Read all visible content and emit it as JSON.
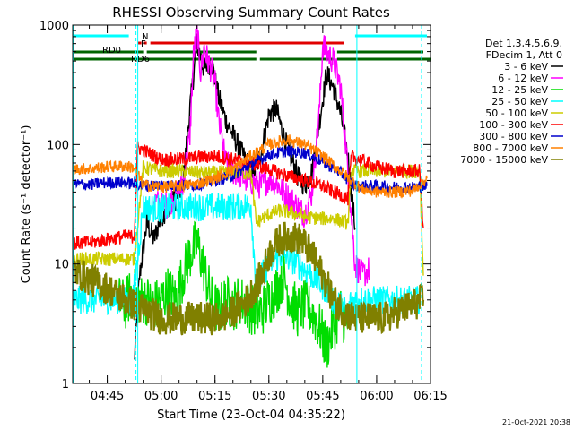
{
  "chart_data": {
    "type": "line",
    "title": "RHESSI Observing Summary Count Rates",
    "xlabel": "Start Time (23-Oct-04 04:35:22)",
    "ylabel": "Count Rate (s⁻¹ detector⁻¹)",
    "footer_date": "21-Oct-2021 20:38",
    "yscale": "log",
    "ylim": [
      1,
      1000
    ],
    "xlim": [
      "04:35:22",
      "06:15:00"
    ],
    "xticks": [
      "04:45",
      "05:00",
      "05:15",
      "05:30",
      "05:45",
      "06:00",
      "06:15"
    ],
    "yticks": [
      "1",
      "10",
      "100",
      "1000"
    ],
    "legend_header": [
      "Det 1,3,4,5,6,9,",
      "FDecim 1, Att 0"
    ],
    "legend_position": "top-right",
    "flags": {
      "n_label": "N",
      "f_label": "F",
      "rd0_label": "RD0",
      "rd6_label": "RD6",
      "n_color": "#00ffff",
      "f_color": "#e00000",
      "rd_color": "#006400",
      "n_segments": [
        [
          "04:35:22",
          "04:51:00"
        ],
        [
          "05:54:00",
          "06:14:00"
        ]
      ],
      "f_segments": [
        [
          "04:53:30",
          "04:54:30"
        ],
        [
          "04:55:00",
          "04:56:00"
        ],
        [
          "04:57:00",
          "05:51:00"
        ]
      ],
      "rd0_segments": [
        [
          "04:35:22",
          "04:55:00"
        ],
        [
          "04:56:00",
          "05:26:30"
        ],
        [
          "05:49:00",
          "06:13:00"
        ]
      ],
      "rd6_segments": [
        [
          "04:35:22",
          "05:26:30"
        ],
        [
          "05:27:30",
          "05:48:00"
        ],
        [
          "05:49:00",
          "06:15:00"
        ]
      ]
    },
    "night_markers": [
      "04:53:00",
      "05:54:30",
      "06:12:30"
    ],
    "series": [
      {
        "name": "3 - 6 keV",
        "color": "#000000",
        "x": [
          "04:52:30",
          "04:54:00",
          "04:56:00",
          "04:58:00",
          "05:00:00",
          "05:02:00",
          "05:04:00",
          "05:06:00",
          "05:08:00",
          "05:10:00",
          "05:12:00",
          "05:14:00",
          "05:16:00",
          "05:18:00",
          "05:20:00",
          "05:22:00",
          "05:24:00",
          "05:26:00",
          "05:28:00",
          "05:30:00",
          "05:32:00",
          "05:34:00",
          "05:36:00",
          "05:38:00",
          "05:40:00",
          "05:42:00",
          "05:44:00",
          "05:46:00",
          "05:48:00",
          "05:50:00",
          "05:52:00",
          "05:54:00"
        ],
        "y": [
          1.5,
          8,
          22,
          16,
          25,
          30,
          35,
          45,
          200,
          700,
          420,
          500,
          250,
          160,
          120,
          90,
          70,
          60,
          90,
          180,
          200,
          120,
          80,
          55,
          45,
          60,
          150,
          390,
          300,
          180,
          80,
          20
        ]
      },
      {
        "name": "6 - 12 keV",
        "color": "#ff00ff",
        "x": [
          "04:58:00",
          "05:00:00",
          "05:02:00",
          "05:04:00",
          "05:06:00",
          "05:08:00",
          "05:09:00",
          "05:10:00",
          "05:11:00",
          "05:12:00",
          "05:13:00",
          "05:14:00",
          "05:15:00",
          "05:16:00",
          "05:18:00",
          "05:20:00",
          "05:22:00",
          "05:24:00",
          "05:26:00",
          "05:28:00",
          "05:30:00",
          "05:32:00",
          "05:34:00",
          "05:36:00",
          "05:38:00",
          "05:40:00",
          "05:42:00",
          "05:44:00",
          "05:45:00",
          "05:46:00",
          "05:48:00",
          "05:50:00",
          "05:52:00",
          "05:54:00",
          "05:56:00",
          "05:58:00"
        ],
        "y": [
          35,
          30,
          32,
          38,
          45,
          120,
          550,
          900,
          400,
          650,
          500,
          420,
          320,
          160,
          70,
          60,
          55,
          50,
          48,
          45,
          52,
          48,
          40,
          35,
          30,
          26,
          40,
          180,
          700,
          600,
          500,
          300,
          60,
          10,
          8,
          9
        ]
      },
      {
        "name": "12 - 25 keV",
        "color": "#00dd00",
        "x": [
          "04:48:00",
          "04:50:00",
          "04:52:00",
          "04:54:00",
          "04:56:00",
          "04:58:00",
          "05:00:00",
          "05:02:00",
          "05:04:00",
          "05:06:00",
          "05:08:00",
          "05:10:00",
          "05:12:00",
          "05:14:00",
          "05:16:00",
          "05:18:00",
          "05:20:00",
          "05:22:00",
          "05:24:00",
          "05:26:00",
          "05:28:00",
          "05:30:00",
          "05:32:00",
          "05:34:00",
          "05:36:00",
          "05:38:00",
          "05:40:00",
          "05:42:00",
          "05:44:00",
          "05:46:00",
          "05:48:00",
          "05:50:00",
          "05:52:00"
        ],
        "y": [
          5,
          4.5,
          6,
          5,
          5,
          4.5,
          5,
          6,
          5,
          8,
          12,
          15,
          9,
          5,
          4,
          5,
          4.5,
          5,
          4.5,
          4,
          4,
          5,
          6,
          8,
          5,
          4,
          4.5,
          4,
          3,
          2,
          3,
          4,
          3
        ]
      },
      {
        "name": "25 - 50 keV",
        "color": "#00ffff",
        "x": [
          "04:35:22",
          "04:40:00",
          "04:45:00",
          "04:50:00",
          "04:52:00",
          "04:55:00",
          "05:00:00",
          "05:05:00",
          "05:10:00",
          "05:15:00",
          "05:20:00",
          "05:25:00",
          "05:26:30",
          "05:28:00",
          "05:30:00",
          "05:32:00",
          "05:34:00",
          "05:36:00",
          "05:38:00",
          "05:40:00",
          "05:42:00",
          "05:44:00",
          "05:46:00",
          "05:48:00",
          "05:50:00",
          "05:52:00",
          "05:53:00",
          "05:55:00",
          "06:00:00",
          "06:05:00",
          "06:10:00",
          "06:12:00"
        ],
        "y": [
          5,
          5,
          5,
          5,
          4.5,
          30,
          29,
          30,
          30,
          30,
          30,
          31,
          6,
          8,
          10,
          11,
          12,
          11,
          10,
          9,
          8,
          7,
          6,
          5,
          4.5,
          4,
          5,
          5,
          5,
          5,
          5,
          5
        ]
      },
      {
        "name": "50 - 100 keV",
        "color": "#cccc00",
        "x": [
          "04:35:22",
          "04:40:00",
          "04:45:00",
          "04:50:00",
          "04:52:30",
          "04:55:00",
          "05:00:00",
          "05:05:00",
          "05:10:00",
          "05:15:00",
          "05:20:00",
          "05:25:00",
          "05:26:30",
          "05:28:00",
          "05:30:00",
          "05:33:00",
          "05:36:00",
          "05:40:00",
          "05:44:00",
          "05:48:00",
          "05:50:00",
          "05:52:00",
          "05:53:00",
          "05:55:00",
          "06:00:00",
          "06:05:00",
          "06:10:00",
          "06:12:00",
          "06:13:00"
        ],
        "y": [
          11,
          11,
          11,
          11,
          11,
          64,
          60,
          60,
          58,
          58,
          58,
          58,
          22,
          24,
          26,
          28,
          27,
          25,
          24,
          24,
          23,
          22,
          60,
          60,
          60,
          60,
          60,
          60,
          8
        ]
      },
      {
        "name": "100 - 300 keV",
        "color": "#ff0000",
        "x": [
          "04:35:22",
          "04:40:00",
          "04:45:00",
          "04:50:00",
          "04:52:30",
          "04:53:30",
          "04:55:00",
          "05:00:00",
          "05:05:00",
          "05:10:00",
          "05:15:00",
          "05:20:00",
          "05:25:00",
          "05:30:00",
          "05:35:00",
          "05:40:00",
          "05:45:00",
          "05:48:00",
          "05:50:00",
          "05:52:00",
          "05:53:00",
          "05:55:00",
          "06:00:00",
          "06:05:00",
          "06:10:00",
          "06:12:00",
          "06:13:00"
        ],
        "y": [
          15,
          15,
          16,
          17,
          17,
          95,
          90,
          75,
          75,
          78,
          80,
          75,
          70,
          62,
          55,
          50,
          45,
          40,
          38,
          35,
          80,
          75,
          65,
          60,
          60,
          60,
          20
        ]
      },
      {
        "name": "300 - 800 keV",
        "color": "#0000cc",
        "x": [
          "04:35:22",
          "04:40:00",
          "04:45:00",
          "04:50:00",
          "04:52:30",
          "04:55:00",
          "05:00:00",
          "05:05:00",
          "05:10:00",
          "05:15:00",
          "05:20:00",
          "05:25:00",
          "05:30:00",
          "05:35:00",
          "05:40:00",
          "05:45:00",
          "05:50:00",
          "05:54:00",
          "05:56:00",
          "06:00:00",
          "06:05:00",
          "06:10:00",
          "06:14:00"
        ],
        "y": [
          47,
          46,
          48,
          48,
          47,
          45,
          46,
          45,
          46,
          50,
          55,
          68,
          82,
          88,
          85,
          72,
          58,
          45,
          45,
          45,
          44,
          44,
          45
        ]
      },
      {
        "name": "800 - 7000 keV",
        "color": "#ff8000",
        "x": [
          "04:35:22",
          "04:40:00",
          "04:45:00",
          "04:50:00",
          "04:52:30",
          "04:55:00",
          "05:00:00",
          "05:05:00",
          "05:10:00",
          "05:15:00",
          "05:20:00",
          "05:25:00",
          "05:30:00",
          "05:35:00",
          "05:40:00",
          "05:45:00",
          "05:50:00",
          "05:54:00",
          "05:56:00",
          "06:00:00",
          "06:05:00",
          "06:10:00",
          "06:14:00"
        ],
        "y": [
          62,
          63,
          65,
          66,
          64,
          46,
          44,
          45,
          47,
          52,
          62,
          80,
          100,
          110,
          100,
          80,
          60,
          47,
          42,
          40,
          40,
          41,
          52
        ]
      },
      {
        "name": "7000 - 15000 keV",
        "color": "#808000",
        "x": [
          "04:35:22",
          "04:38:00",
          "04:42:00",
          "04:46:00",
          "04:50:00",
          "04:53:00",
          "04:56:00",
          "05:00:00",
          "05:04:00",
          "05:08:00",
          "05:12:00",
          "05:16:00",
          "05:20:00",
          "05:24:00",
          "05:28:00",
          "05:30:00",
          "05:33:00",
          "05:36:00",
          "05:39:00",
          "05:42:00",
          "05:45:00",
          "05:48:00",
          "05:51:00",
          "05:54:00",
          "05:58:00",
          "06:02:00",
          "06:06:00",
          "06:10:00",
          "06:13:00"
        ],
        "y": [
          9,
          8,
          7,
          6,
          5,
          4.5,
          4,
          3.5,
          3.5,
          3.5,
          3.5,
          3.5,
          4,
          5,
          8,
          12,
          16,
          17,
          16,
          12,
          8,
          5,
          4,
          3.5,
          3.5,
          3.5,
          4,
          4.5,
          5
        ]
      }
    ]
  }
}
